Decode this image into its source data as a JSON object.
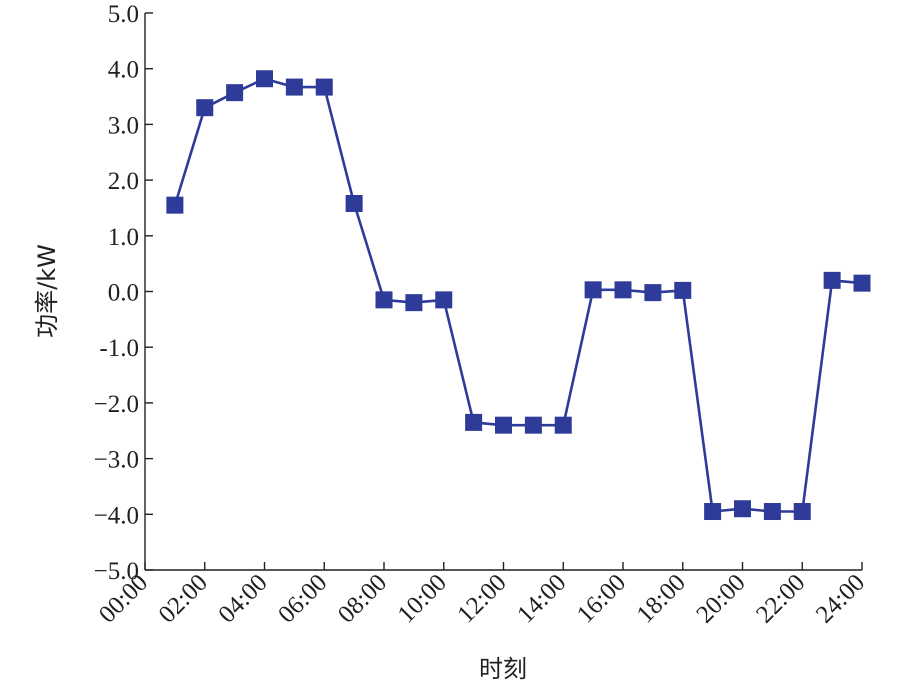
{
  "chart_data": {
    "type": "line",
    "xlabel": "时刻",
    "ylabel": "功率/kW",
    "ylim": [
      -5.0,
      5.0
    ],
    "xlim_hours": [
      0,
      24
    ],
    "y_ticks": [
      {
        "value": 5.0,
        "label": "5.0"
      },
      {
        "value": 4.0,
        "label": "4.0"
      },
      {
        "value": 3.0,
        "label": "3.0"
      },
      {
        "value": 2.0,
        "label": "2.0"
      },
      {
        "value": 1.0,
        "label": "1.0"
      },
      {
        "value": 0.0,
        "label": "0.0"
      },
      {
        "value": -1.0,
        "label": "-1.0"
      },
      {
        "value": -2.0,
        "label": "−2.0"
      },
      {
        "value": -3.0,
        "label": "−3.0"
      },
      {
        "value": -4.0,
        "label": "−4.0"
      },
      {
        "value": -5.0,
        "label": "−5.0"
      }
    ],
    "x_ticks": [
      {
        "value": 0,
        "label": "00:00"
      },
      {
        "value": 2,
        "label": "02:00"
      },
      {
        "value": 4,
        "label": "04:00"
      },
      {
        "value": 6,
        "label": "06:00"
      },
      {
        "value": 8,
        "label": "08:00"
      },
      {
        "value": 10,
        "label": "10:00"
      },
      {
        "value": 12,
        "label": "12:00"
      },
      {
        "value": 14,
        "label": "14:00"
      },
      {
        "value": 16,
        "label": "16:00"
      },
      {
        "value": 18,
        "label": "18:00"
      },
      {
        "value": 20,
        "label": "20:00"
      },
      {
        "value": 22,
        "label": "22:00"
      },
      {
        "value": 24,
        "label": "24:00"
      }
    ],
    "grid": false,
    "series": [
      {
        "color": "#2e3b98",
        "marker": "square",
        "x": [
          1,
          2,
          3,
          4,
          5,
          6,
          7,
          8,
          9,
          10,
          11,
          12,
          13,
          14,
          15,
          16,
          17,
          18,
          19,
          20,
          21,
          22,
          23,
          24
        ],
        "y": [
          1.55,
          3.3,
          3.57,
          3.82,
          3.67,
          3.67,
          1.58,
          -0.15,
          -0.2,
          -0.15,
          -2.35,
          -2.4,
          -2.4,
          -2.4,
          0.03,
          0.03,
          -0.02,
          0.02,
          -3.95,
          -3.9,
          -3.95,
          -3.95,
          0.2,
          0.15
        ]
      }
    ]
  }
}
